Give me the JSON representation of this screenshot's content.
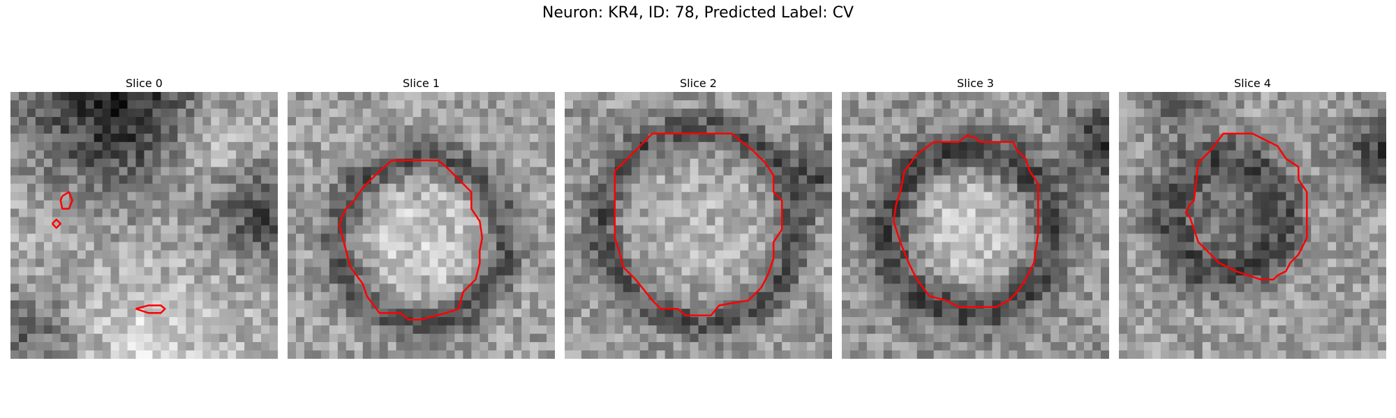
{
  "figure": {
    "title": "Neuron: KR4, ID: 78, Predicted Label: CV",
    "contour_color": "#ff0000"
  },
  "slices": [
    {
      "title": "Slice 0"
    },
    {
      "title": "Slice 1"
    },
    {
      "title": "Slice 2"
    },
    {
      "title": "Slice 3"
    },
    {
      "title": "Slice 4"
    }
  ]
}
